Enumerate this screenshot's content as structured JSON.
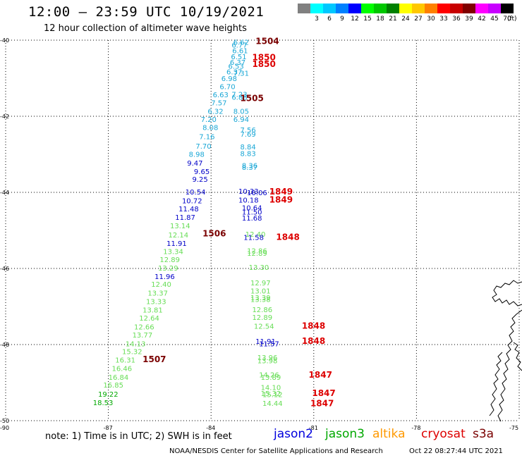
{
  "title": "12:00 – 23:59 UTC 10/19/2021",
  "subtitle": "12 hour collection of altimeter wave heights",
  "scale": {
    "unit": "(ft)",
    "bins": [
      {
        "label": "",
        "color": "#808080"
      },
      {
        "label": "3",
        "color": "#00ffff"
      },
      {
        "label": "6",
        "color": "#00c8ff"
      },
      {
        "label": "9",
        "color": "#0080ff"
      },
      {
        "label": "12",
        "color": "#0000ff"
      },
      {
        "label": "15",
        "color": "#00ff00"
      },
      {
        "label": "18",
        "color": "#00c800"
      },
      {
        "label": "21",
        "color": "#008000"
      },
      {
        "label": "24",
        "color": "#ffff00"
      },
      {
        "label": "27",
        "color": "#ffc800"
      },
      {
        "label": "30",
        "color": "#ff8000"
      },
      {
        "label": "33",
        "color": "#ff0000"
      },
      {
        "label": "36",
        "color": "#c80000"
      },
      {
        "label": "39",
        "color": "#800000"
      },
      {
        "label": "42",
        "color": "#ff00ff"
      },
      {
        "label": "45",
        "color": "#c800ff"
      },
      {
        "label": "70",
        "color": "#000000"
      }
    ]
  },
  "axes": {
    "lat_ticks": [
      {
        "value": -40,
        "label": "-40"
      },
      {
        "value": -42,
        "label": "-42"
      },
      {
        "value": -44,
        "label": "-44"
      },
      {
        "value": -46,
        "label": "-46"
      },
      {
        "value": -48,
        "label": "-48"
      },
      {
        "value": -50,
        "label": "-50"
      }
    ],
    "lon_ticks": [
      {
        "value": -90,
        "label": "-90"
      },
      {
        "value": -87,
        "label": "-87"
      },
      {
        "value": -84,
        "label": "-84"
      },
      {
        "value": -81,
        "label": "-81"
      },
      {
        "value": -78,
        "label": "-78"
      },
      {
        "value": -75,
        "label": "-75"
      }
    ]
  },
  "colors": {
    "cyan_track": "#1aa7d6",
    "blue_track": "#0000c8",
    "green_track": "#66dd55",
    "time_red": "#dd0000",
    "time_dark": "#7a0000"
  },
  "track_a": [
    {
      "lat": -40.05,
      "lon": -83.35,
      "v": "6.62",
      "c": "#1aa7d6"
    },
    {
      "lat": -40.12,
      "lon": -83.4,
      "v": "6.77",
      "c": "#1aa7d6"
    },
    {
      "lat": -40.27,
      "lon": -83.38,
      "v": "6.61",
      "c": "#1aa7d6"
    },
    {
      "lat": -40.43,
      "lon": -83.42,
      "v": "6.51",
      "c": "#1aa7d6"
    },
    {
      "lat": -40.57,
      "lon": -83.45,
      "v": "6.37",
      "c": "#1aa7d6"
    },
    {
      "lat": -40.68,
      "lon": -83.5,
      "v": "6.53",
      "c": "#1aa7d6"
    },
    {
      "lat": -40.82,
      "lon": -83.55,
      "v": "6.37",
      "c": "#1aa7d6"
    },
    {
      "lat": -40.86,
      "lon": -83.35,
      "v": "7.31",
      "c": "#1aa7d6"
    },
    {
      "lat": -41.0,
      "lon": -83.7,
      "v": "6.98",
      "c": "#1aa7d6"
    },
    {
      "lat": -41.21,
      "lon": -83.75,
      "v": "6.70",
      "c": "#1aa7d6"
    },
    {
      "lat": -41.43,
      "lon": -83.95,
      "v": "6.63",
      "c": "#1aa7d6"
    },
    {
      "lat": -41.42,
      "lon": -83.4,
      "v": "7.23",
      "c": "#1aa7d6"
    },
    {
      "lat": -41.49,
      "lon": -83.4,
      "v": "6.88",
      "c": "#1aa7d6"
    },
    {
      "lat": -41.64,
      "lon": -84.0,
      "v": "7.57",
      "c": "#1aa7d6"
    },
    {
      "lat": -41.86,
      "lon": -84.1,
      "v": "6.32",
      "c": "#1aa7d6"
    },
    {
      "lat": -41.86,
      "lon": -83.35,
      "v": "8.05",
      "c": "#1aa7d6"
    },
    {
      "lat": -42.07,
      "lon": -84.3,
      "v": "7.20",
      "c": "#1aa7d6"
    },
    {
      "lat": -42.07,
      "lon": -83.35,
      "v": "6.94",
      "c": "#1aa7d6"
    },
    {
      "lat": -42.29,
      "lon": -84.25,
      "v": "8.08",
      "c": "#1aa7d6"
    },
    {
      "lat": -42.35,
      "lon": -83.15,
      "v": "7.56",
      "c": "#1aa7d6"
    },
    {
      "lat": -42.46,
      "lon": -83.15,
      "v": "7.69",
      "c": "#1aa7d6"
    },
    {
      "lat": -42.53,
      "lon": -84.35,
      "v": "7.16",
      "c": "#1aa7d6"
    },
    {
      "lat": -42.78,
      "lon": -84.45,
      "v": "7.70",
      "c": "#1aa7d6"
    },
    {
      "lat": -42.8,
      "lon": -83.15,
      "v": "8.84",
      "c": "#1aa7d6"
    },
    {
      "lat": -42.99,
      "lon": -84.65,
      "v": "8.98",
      "c": "#1aa7d6"
    },
    {
      "lat": -42.97,
      "lon": -83.15,
      "v": "8.83",
      "c": "#1aa7d6"
    },
    {
      "lat": -43.22,
      "lon": -84.7,
      "v": "9.47",
      "c": "#0000c8"
    },
    {
      "lat": -43.29,
      "lon": -83.1,
      "v": "8.36",
      "c": "#1aa7d6"
    },
    {
      "lat": -43.33,
      "lon": -83.1,
      "v": "8.37",
      "c": "#1aa7d6"
    },
    {
      "lat": -43.44,
      "lon": -84.5,
      "v": "9.65",
      "c": "#0000c8"
    },
    {
      "lat": -43.65,
      "lon": -84.55,
      "v": "9.25",
      "c": "#0000c8"
    },
    {
      "lat": -43.98,
      "lon": -84.75,
      "v": "10.54",
      "c": "#0000c8"
    },
    {
      "lat": -43.96,
      "lon": -83.2,
      "v": "10.33",
      "c": "#0000c8"
    },
    {
      "lat": -44.0,
      "lon": -82.95,
      "v": "10.06",
      "c": "#0000c8"
    },
    {
      "lat": -44.19,
      "lon": -83.2,
      "v": "10.18",
      "c": "#0000c8"
    },
    {
      "lat": -44.21,
      "lon": -84.85,
      "v": "10.72",
      "c": "#0000c8"
    },
    {
      "lat": -44.4,
      "lon": -83.1,
      "v": "10.64",
      "c": "#0000c8"
    },
    {
      "lat": -44.51,
      "lon": -83.1,
      "v": "11.50",
      "c": "#0000c8"
    },
    {
      "lat": -44.43,
      "lon": -84.95,
      "v": "11.48",
      "c": "#0000c8"
    },
    {
      "lat": -44.65,
      "lon": -85.05,
      "v": "11.87",
      "c": "#0000c8"
    },
    {
      "lat": -44.67,
      "lon": -83.1,
      "v": "11.68",
      "c": "#0000c8"
    },
    {
      "lat": -44.87,
      "lon": -85.2,
      "v": "13.14",
      "c": "#66dd55"
    },
    {
      "lat": -45.11,
      "lon": -85.25,
      "v": "12.14",
      "c": "#66dd55"
    },
    {
      "lat": -45.09,
      "lon": -83.0,
      "v": "12.40",
      "c": "#66dd55"
    },
    {
      "lat": -45.18,
      "lon": -83.05,
      "v": "11.58",
      "c": "#0000c8"
    },
    {
      "lat": -45.33,
      "lon": -85.3,
      "v": "11.91",
      "c": "#0000c8"
    },
    {
      "lat": -45.55,
      "lon": -85.4,
      "v": "13.34",
      "c": "#66dd55"
    },
    {
      "lat": -45.53,
      "lon": -82.95,
      "v": "12.86",
      "c": "#66dd55"
    },
    {
      "lat": -45.59,
      "lon": -82.95,
      "v": "12.89",
      "c": "#66dd55"
    },
    {
      "lat": -45.76,
      "lon": -85.5,
      "v": "12.89",
      "c": "#66dd55"
    },
    {
      "lat": -45.96,
      "lon": -82.9,
      "v": "13.30",
      "c": "#66dd55"
    },
    {
      "lat": -45.98,
      "lon": -85.55,
      "v": "13.29",
      "c": "#66dd55"
    },
    {
      "lat": -46.2,
      "lon": -85.65,
      "v": "11.96",
      "c": "#0000c8"
    },
    {
      "lat": -46.37,
      "lon": -82.85,
      "v": "12.97",
      "c": "#66dd55"
    },
    {
      "lat": -46.41,
      "lon": -85.75,
      "v": "12.40",
      "c": "#66dd55"
    },
    {
      "lat": -46.58,
      "lon": -82.85,
      "v": "13.01",
      "c": "#66dd55"
    },
    {
      "lat": -46.64,
      "lon": -85.85,
      "v": "13.37",
      "c": "#66dd55"
    },
    {
      "lat": -46.76,
      "lon": -82.85,
      "v": "13.39",
      "c": "#66dd55"
    },
    {
      "lat": -46.81,
      "lon": -82.85,
      "v": "13.38",
      "c": "#66dd55"
    },
    {
      "lat": -46.86,
      "lon": -85.9,
      "v": "13.33",
      "c": "#66dd55"
    },
    {
      "lat": -47.08,
      "lon": -86.0,
      "v": "13.81",
      "c": "#66dd55"
    },
    {
      "lat": -47.07,
      "lon": -82.8,
      "v": "12.86",
      "c": "#66dd55"
    },
    {
      "lat": -47.28,
      "lon": -82.8,
      "v": "12.89",
      "c": "#66dd55"
    },
    {
      "lat": -47.3,
      "lon": -86.1,
      "v": "12.64",
      "c": "#66dd55"
    },
    {
      "lat": -47.53,
      "lon": -86.25,
      "v": "12.66",
      "c": "#66dd55"
    },
    {
      "lat": -47.51,
      "lon": -82.75,
      "v": "12.54",
      "c": "#66dd55"
    },
    {
      "lat": -47.74,
      "lon": -86.3,
      "v": "13.77",
      "c": "#66dd55"
    },
    {
      "lat": -47.91,
      "lon": -82.7,
      "v": "11.91",
      "c": "#0000c8"
    },
    {
      "lat": -47.97,
      "lon": -82.6,
      "v": "11.57",
      "c": "#0000c8"
    },
    {
      "lat": -47.97,
      "lon": -86.5,
      "v": "14.13",
      "c": "#66dd55"
    },
    {
      "lat": -48.18,
      "lon": -86.6,
      "v": "15.32",
      "c": "#66dd55"
    },
    {
      "lat": -48.33,
      "lon": -82.65,
      "v": "13.96",
      "c": "#66dd55"
    },
    {
      "lat": -48.42,
      "lon": -82.65,
      "v": "13.98",
      "c": "#66dd55"
    },
    {
      "lat": -48.4,
      "lon": -86.8,
      "v": "16.31",
      "c": "#66dd55"
    },
    {
      "lat": -48.62,
      "lon": -86.9,
      "v": "16.46",
      "c": "#66dd55"
    },
    {
      "lat": -48.79,
      "lon": -82.6,
      "v": "14.26",
      "c": "#66dd55"
    },
    {
      "lat": -48.85,
      "lon": -82.55,
      "v": "13.89",
      "c": "#66dd55"
    },
    {
      "lat": -48.85,
      "lon": -87.0,
      "v": "16.84",
      "c": "#66dd55"
    },
    {
      "lat": -49.06,
      "lon": -87.15,
      "v": "16.85",
      "c": "#66dd55"
    },
    {
      "lat": -49.3,
      "lon": -87.3,
      "v": "19.22",
      "c": "#00a800"
    },
    {
      "lat": -49.31,
      "lon": -82.5,
      "v": "15.12",
      "c": "#66dd55"
    },
    {
      "lat": -49.12,
      "lon": -82.55,
      "v": "14.10",
      "c": "#66dd55"
    },
    {
      "lat": -49.28,
      "lon": -82.55,
      "v": "15.32",
      "c": "#66dd55"
    },
    {
      "lat": -49.52,
      "lon": -87.45,
      "v": "18.53",
      "c": "#00a800"
    },
    {
      "lat": -49.54,
      "lon": -82.5,
      "v": "14.44",
      "c": "#66dd55"
    }
  ],
  "time_labels": [
    {
      "lat": -40.03,
      "lon": -82.7,
      "t": "1504",
      "c": "#7a0000"
    },
    {
      "lat": -40.45,
      "lon": -82.8,
      "t": "1850",
      "c": "#dd0000"
    },
    {
      "lat": -40.63,
      "lon": -82.8,
      "t": "1850",
      "c": "#dd0000"
    },
    {
      "lat": -41.53,
      "lon": -83.15,
      "t": "1505",
      "c": "#7a0000"
    },
    {
      "lat": -43.98,
      "lon": -82.3,
      "t": "1849",
      "c": "#dd0000"
    },
    {
      "lat": -44.19,
      "lon": -82.3,
      "t": "1849",
      "c": "#dd0000"
    },
    {
      "lat": -45.08,
      "lon": -84.25,
      "t": "1506",
      "c": "#7a0000"
    },
    {
      "lat": -45.18,
      "lon": -82.1,
      "t": "1848",
      "c": "#dd0000"
    },
    {
      "lat": -47.51,
      "lon": -81.35,
      "t": "1848",
      "c": "#dd0000"
    },
    {
      "lat": -47.91,
      "lon": -81.35,
      "t": "1848",
      "c": "#dd0000"
    },
    {
      "lat": -48.39,
      "lon": -86.0,
      "t": "1507",
      "c": "#7a0000"
    },
    {
      "lat": -48.8,
      "lon": -81.15,
      "t": "1847",
      "c": "#dd0000"
    },
    {
      "lat": -49.28,
      "lon": -81.05,
      "t": "1847",
      "c": "#dd0000"
    },
    {
      "lat": -49.55,
      "lon": -81.1,
      "t": "1847",
      "c": "#dd0000"
    }
  ],
  "note": "note: 1) Time is in UTC; 2) SWH is in feet",
  "legend": [
    {
      "label": "jason2",
      "color": "#0000dd"
    },
    {
      "label": "jason3",
      "color": "#00a800"
    },
    {
      "label": "altika",
      "color": "#ff9900"
    },
    {
      "label": "cryosat",
      "color": "#dd0000"
    },
    {
      "label": "s3a",
      "color": "#7a0000"
    }
  ],
  "credit": "NOAA/NESDIS Center for Satellite Applications and Research",
  "timestamp": "Oct 22 08:27:44 UTC 2021"
}
